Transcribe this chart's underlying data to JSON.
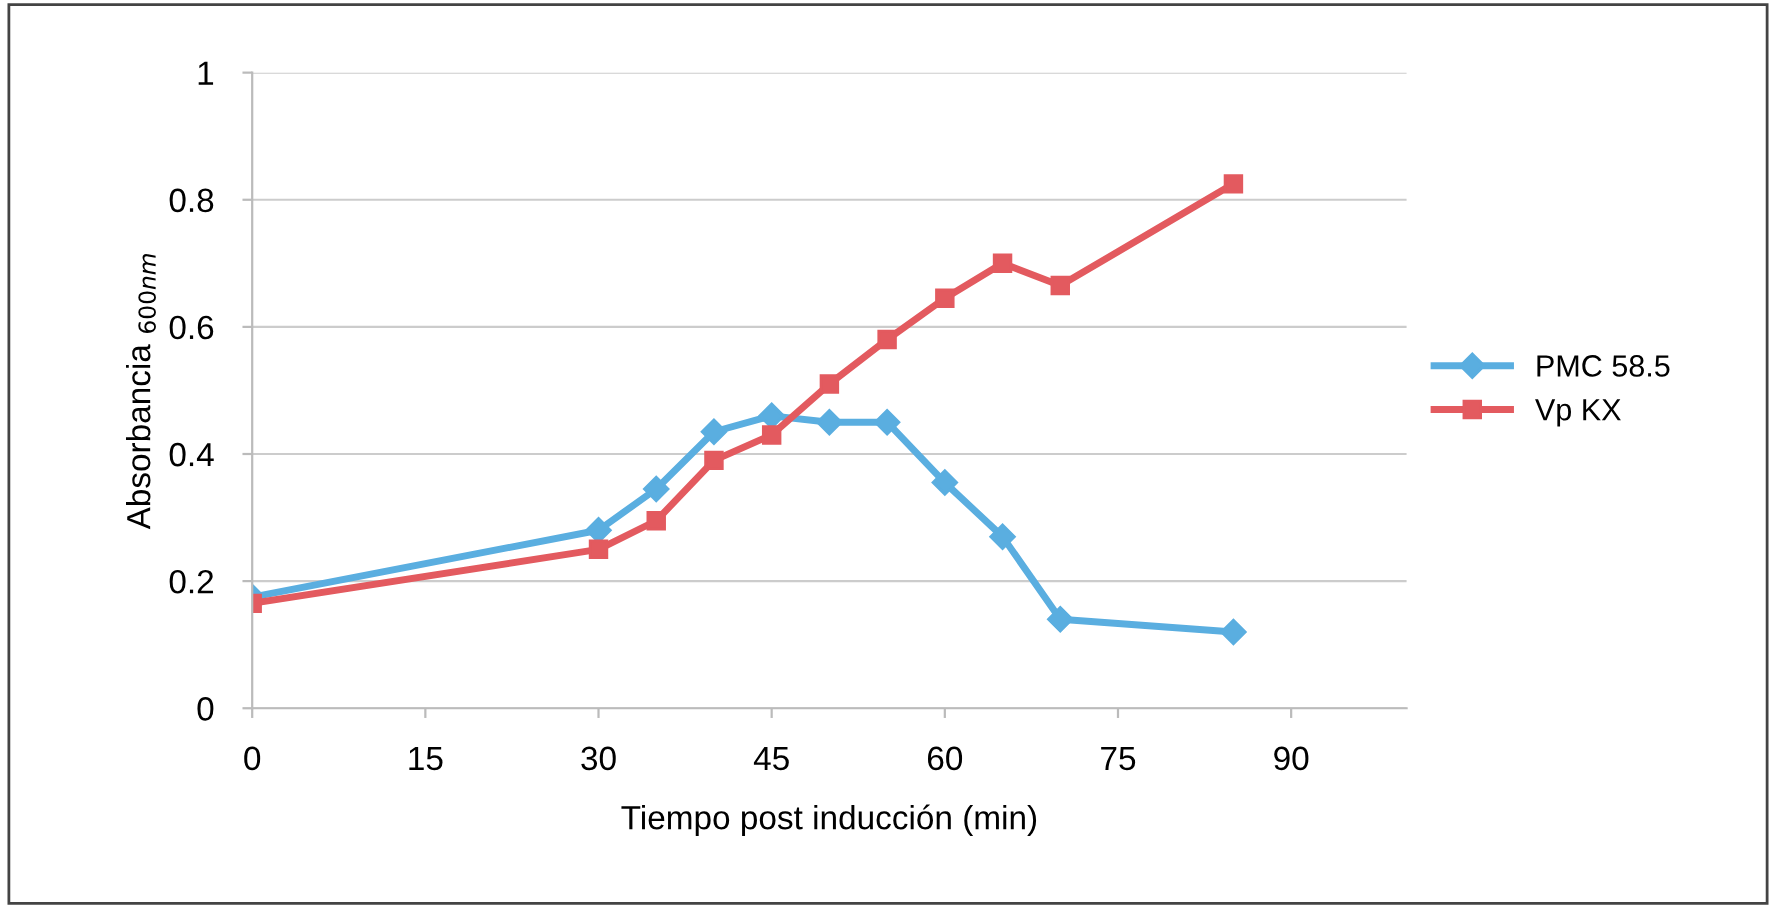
{
  "chart_data": {
    "type": "line",
    "xlabel": "Tiempo post inducción (min)",
    "ylabel": "Absorbancia $_{600nm}$",
    "x": [
      0,
      30,
      35,
      40,
      45,
      50,
      55,
      60,
      65,
      70,
      85
    ],
    "series": [
      {
        "name": "PMC 58.5",
        "color": "#5aaee0",
        "marker": "diamond",
        "values": [
          0.175,
          0.28,
          0.345,
          0.435,
          0.46,
          0.45,
          0.45,
          0.355,
          0.27,
          0.14,
          0.12
        ]
      },
      {
        "name": "Vp KX",
        "color": "#e35a5f",
        "marker": "square",
        "values": [
          0.165,
          0.25,
          0.295,
          0.39,
          0.43,
          0.51,
          0.58,
          0.645,
          0.7,
          0.665,
          0.825
        ]
      }
    ],
    "xlim": [
      0,
      100
    ],
    "xticks": [
      0,
      15,
      30,
      45,
      60,
      75,
      90
    ],
    "ylim": [
      0,
      1
    ],
    "yticks": [
      0,
      0.2,
      0.4,
      0.6,
      0.8,
      1
    ],
    "grid": "y",
    "legend": "right",
    "line_style": "solid"
  }
}
